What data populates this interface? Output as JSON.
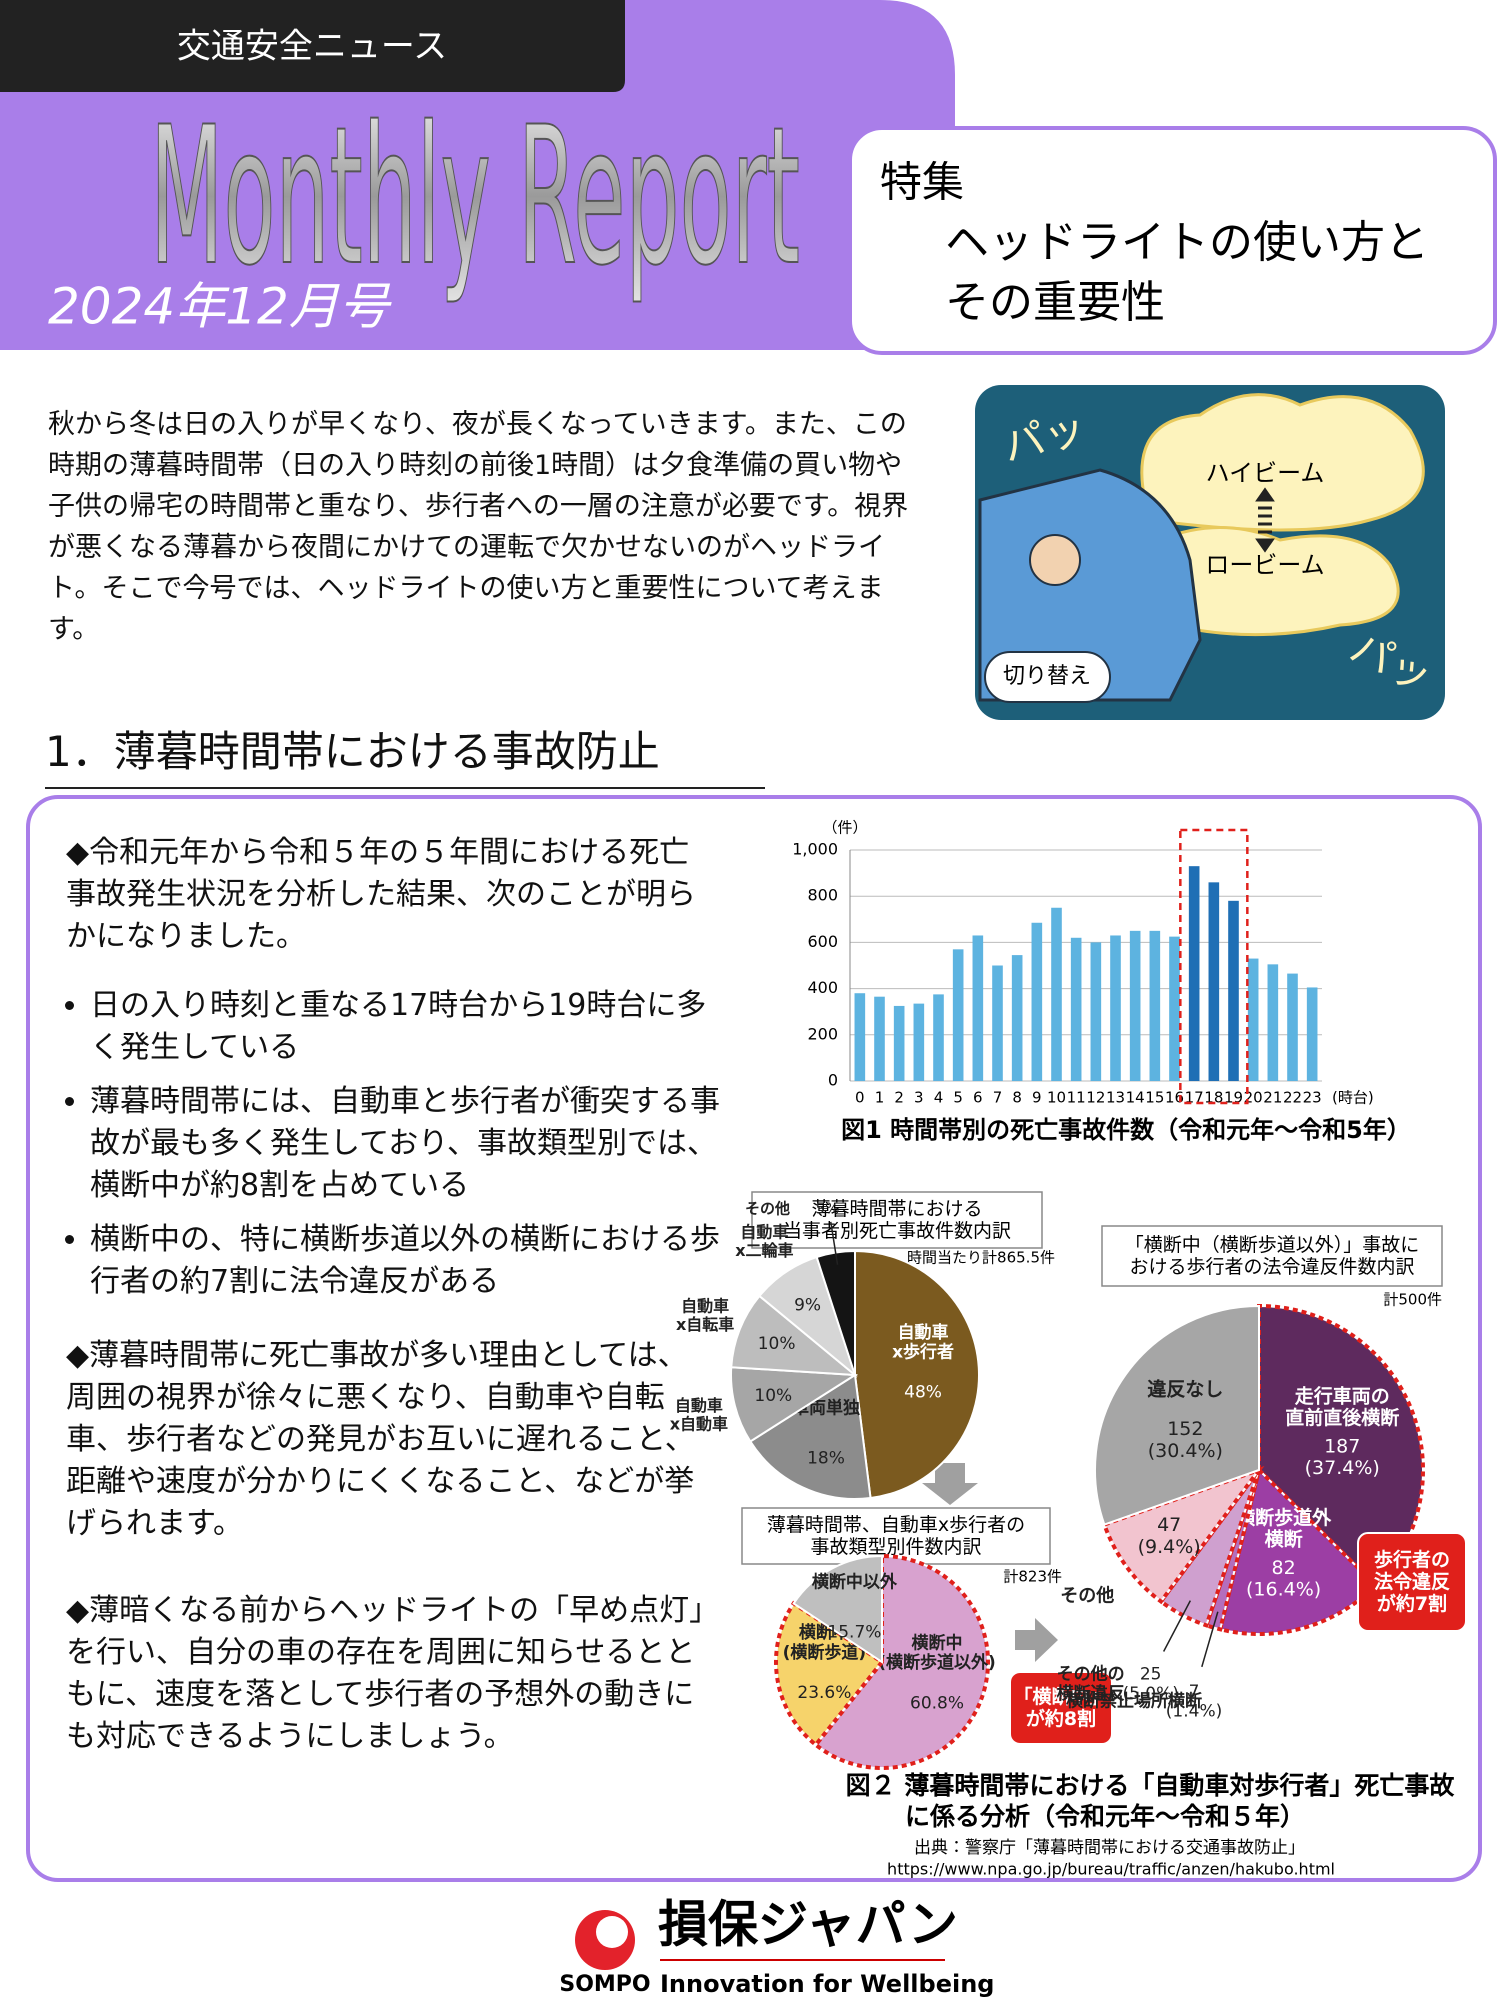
{
  "header": {
    "tag": "交通安全ニュース",
    "title": "Monthly Report",
    "issue": "2024年12月号",
    "feature_label": "特集",
    "feature_title": [
      "ヘッドライトの使い方と",
      "その重要性"
    ]
  },
  "intro": "秋から冬は日の入りが早くなり、夜が長くなっていきます。また、この時期の薄暮時間帯（日の入り時刻の前後1時間）は夕食準備の買い物や子供の帰宅の時間帯と重なり、歩行者への一層の注意が必要です。視界が悪くなる薄暮から夜間にかけての運転で欠かせないのがヘッドライト。そこで今号では、ヘッドライトの使い方と重要性について考えます。",
  "illustration": {
    "high": "ハイビーム",
    "low": "ロービーム",
    "switch": "切り替え",
    "sfx": [
      "パッ",
      "パッ"
    ]
  },
  "section_title": "1．薄暮時間帯における事故防止",
  "body": {
    "lead": "◆令和元年から令和５年の５年間における死亡事故発生状況を分析した結果、次のことが明らかになりました。",
    "bullets": [
      "日の入り時刻と重なる17時台から19時台に多く発生している",
      "薄暮時間帯には、自動車と歩行者が衝突する事故が最も多く発生しており、事故類型別では、横断中が約8割を占めている",
      "横断中の、特に横断歩道以外の横断における歩行者の約7割に法令違反がある"
    ],
    "reason": "◆薄暮時間帯に死亡事故が多い理由としては、周囲の視界が徐々に悪くなり、自動車や自転車、歩行者などの発見がお互いに遅れること、距離や速度が分かりにくくなること、などが挙げられます。",
    "advice": "◆薄暗くなる前からヘッドライトの「早め点灯」を行い、自分の車の存在を周囲に知らせるとともに、速度を落として歩行者の予想外の動きにも対応できるようにしましょう。"
  },
  "figure2_caption": [
    "図２ 薄暮時間帯における「自動車対歩行者」死亡事故",
    "に係る分析（令和元年～令和５年）"
  ],
  "source": [
    "出典：警察庁「薄暮時間帯における交通事故防止」",
    "https://www.npa.go.jp/bureau/traffic/anzen/hakubo.html"
  ],
  "footer": {
    "brand": "損保ジャパン",
    "sompo": "SOMPO",
    "tagline": "Innovation for Wellbeing"
  },
  "chart_data": [
    {
      "type": "bar",
      "y_unit": "（件）",
      "x_unit": "(時台)",
      "caption": "図1 時間帯別の死亡事故件数（令和元年～令和5年）",
      "categories": [
        "0",
        "1",
        "2",
        "3",
        "4",
        "5",
        "6",
        "7",
        "8",
        "9",
        "10",
        "11",
        "12",
        "13",
        "14",
        "15",
        "16",
        "17",
        "18",
        "19",
        "20",
        "21",
        "22",
        "23"
      ],
      "values": [
        380,
        365,
        325,
        335,
        375,
        570,
        630,
        500,
        545,
        685,
        750,
        620,
        600,
        630,
        650,
        650,
        625,
        930,
        860,
        780,
        530,
        505,
        465,
        405
      ],
      "colors": [
        "#5db3e0",
        "#5db3e0",
        "#5db3e0",
        "#5db3e0",
        "#5db3e0",
        "#5db3e0",
        "#5db3e0",
        "#5db3e0",
        "#5db3e0",
        "#5db3e0",
        "#5db3e0",
        "#5db3e0",
        "#5db3e0",
        "#5db3e0",
        "#5db3e0",
        "#5db3e0",
        "#5db3e0",
        "#1f6fb5",
        "#1f6fb5",
        "#1f6fb5",
        "#5db3e0",
        "#5db3e0",
        "#5db3e0",
        "#5db3e0"
      ],
      "ylim": [
        0,
        1000
      ],
      "yticks": [
        0,
        200,
        400,
        600,
        800,
        {
          "value": 1000,
          "label": "1,000"
        }
      ],
      "grid": true
    },
    {
      "type": "pie",
      "title": "薄暮時間帯における\n当事者別死亡事故件数内訳",
      "total": "時間当たり計865.5件",
      "categories": [
        "自動車\nx歩行者",
        "車両単独",
        "自動車\nx自動車",
        "自動車\nx自転車",
        "自動車\nx二輪車",
        "その他"
      ],
      "values": [
        48,
        18,
        10,
        10,
        9,
        5
      ],
      "value_labels": [
        "48%",
        "18%",
        "10%",
        "10%",
        "9%",
        "5%"
      ],
      "colors": [
        "#7b5a1f",
        "#8c8c8c",
        "#a6a6a6",
        "#bdbdbd",
        "#d6d6d6",
        "#141414"
      ]
    },
    {
      "type": "pie",
      "title": "薄暮時間帯、自動車x歩行者の\n事故類型別件数内訳",
      "total": "計823件",
      "categories": [
        "横断中\n(横断歩道以外)",
        "横断中\n(横断歩道)",
        "横断中以外"
      ],
      "values": [
        60.8,
        23.6,
        15.7
      ],
      "value_labels": [
        "60.8%",
        "23.6%",
        "15.7%"
      ],
      "colors": [
        "#d8a2cf",
        "#f6d36b",
        "#bfbfbf"
      ],
      "callout": "「横断中」\nが約8割"
    },
    {
      "type": "pie",
      "title": "「横断中（横断歩道以外）」事故に\nおける歩行者の法令違反件数内訳",
      "total": "計500件",
      "categories": [
        "走行車両の\n直前直後横断",
        "横断歩道外\n横断",
        "横断禁止場所横断",
        "その他の\n横断違反",
        "その他",
        "違反なし"
      ],
      "values": [
        187,
        82,
        7,
        25,
        47,
        152
      ],
      "value_labels": [
        "187\n(37.4%)",
        "82\n(16.4%)",
        "7\n(1.4%)",
        "25\n(5.0%)",
        "47\n(9.4%)",
        "152\n(30.4%)"
      ],
      "colors": [
        "#5e2a5e",
        "#9c3ea4",
        "#b46ebc",
        "#cfa0cf",
        "#f2c4cf",
        "#a6a6a6"
      ],
      "callout": "歩行者の\n法令違反\nが約7割"
    }
  ]
}
